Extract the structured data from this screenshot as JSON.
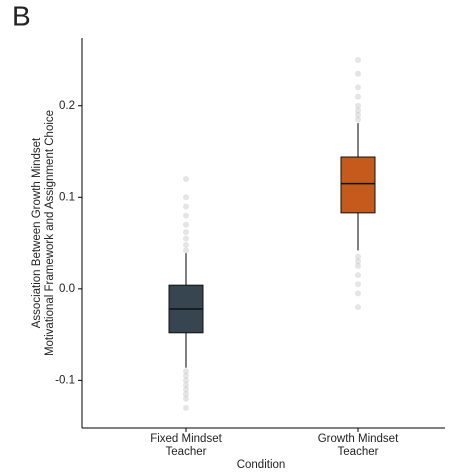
{
  "chart_data": {
    "type": "box",
    "panel_label": "B",
    "xlabel": "Condition",
    "ylabel": [
      "Association Between Growth Mindset",
      "Motivational Framework and Assignment Choice"
    ],
    "categories": [
      [
        "Fixed Mindset",
        "Teacher"
      ],
      [
        "Growth Mindset",
        "Teacher"
      ]
    ],
    "ylim": [
      -0.152,
      0.274
    ],
    "yticks": [
      {
        "value": -0.1,
        "label": "-0.1"
      },
      {
        "value": 0,
        "label": "0.0"
      },
      0.1,
      0.2
    ],
    "boxes": [
      {
        "color": "#36454f",
        "whisker_low": -0.086,
        "q1": -0.048,
        "median": -0.022,
        "q3": 0.004,
        "whisker_high": 0.039,
        "outliers": [
          -0.09,
          -0.095,
          -0.1,
          -0.105,
          -0.11,
          -0.115,
          -0.12,
          -0.13,
          0.042,
          0.048,
          0.055,
          0.062,
          0.07,
          0.08,
          0.09,
          0.1,
          0.12
        ]
      },
      {
        "color": "#c45a1c",
        "whisker_low": 0.042,
        "q1": 0.083,
        "median": 0.115,
        "q3": 0.144,
        "whisker_high": 0.181,
        "outliers": [
          0.185,
          0.19,
          0.195,
          0.2,
          0.21,
          0.22,
          0.235,
          0.25,
          0.035,
          0.03,
          0.025,
          0.015,
          0.005,
          -0.005,
          -0.02
        ]
      }
    ]
  }
}
